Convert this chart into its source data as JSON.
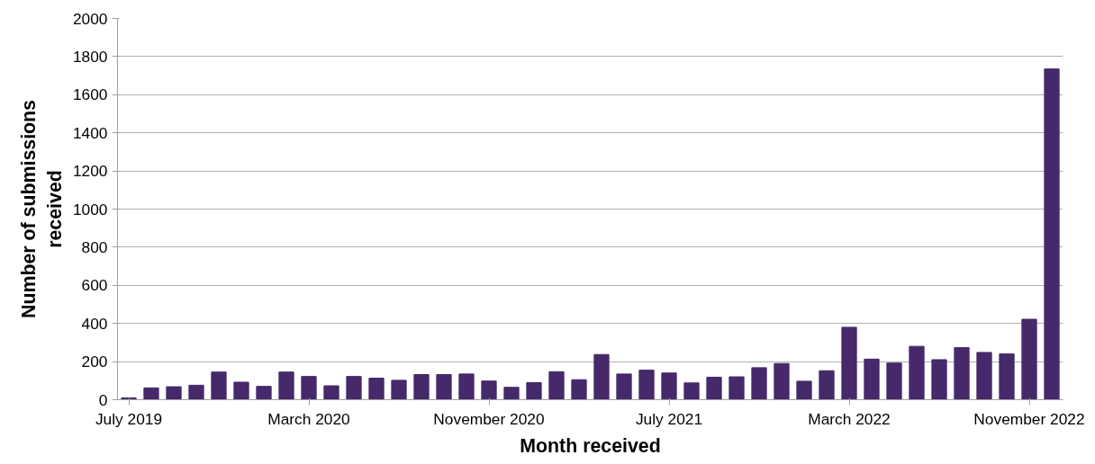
{
  "chart_data": {
    "type": "bar",
    "xlabel": "Month received",
    "ylabel": "Number of submissions received",
    "categories": [
      "July 2019",
      null,
      null,
      null,
      null,
      null,
      null,
      null,
      "March 2020",
      null,
      null,
      null,
      null,
      null,
      null,
      null,
      "November 2020",
      null,
      null,
      null,
      null,
      null,
      null,
      null,
      "July 2021",
      null,
      null,
      null,
      null,
      null,
      null,
      null,
      "March 2022",
      null,
      null,
      null,
      null,
      null,
      null,
      null,
      "November 2022",
      null
    ],
    "values": [
      10,
      62,
      68,
      76,
      145,
      92,
      70,
      145,
      122,
      73,
      122,
      113,
      102,
      132,
      132,
      135,
      98,
      65,
      90,
      147,
      105,
      237,
      135,
      155,
      140,
      88,
      118,
      120,
      168,
      190,
      97,
      152,
      380,
      213,
      192,
      280,
      210,
      273,
      248,
      240,
      422,
      1735
    ],
    "color": "#46296a",
    "ylim": [
      0,
      2000
    ],
    "yticks": [
      0,
      200,
      400,
      600,
      800,
      1000,
      1200,
      1400,
      1600,
      1800,
      2000
    ],
    "grid": "y"
  }
}
